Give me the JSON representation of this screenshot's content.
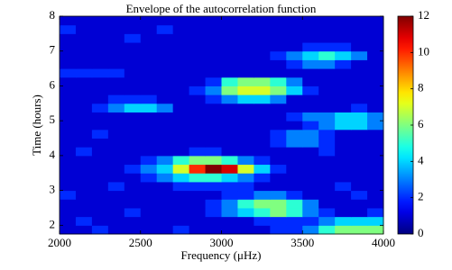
{
  "chart_data": {
    "type": "heatmap",
    "title": "Envelope of the autocorrelation function",
    "x_label": "Frequency (μHz)",
    "y_label": "Time (hours)",
    "x": [
      2050,
      2150,
      2250,
      2350,
      2450,
      2550,
      2650,
      2750,
      2850,
      2950,
      3050,
      3150,
      3250,
      3350,
      3450,
      3550,
      3650,
      3750,
      3850,
      3950
    ],
    "y": [
      1.875,
      2.125,
      2.375,
      2.625,
      2.875,
      3.125,
      3.375,
      3.625,
      3.875,
      4.125,
      4.375,
      4.625,
      4.875,
      5.125,
      5.375,
      5.625,
      5.875,
      6.125,
      6.375,
      6.625,
      6.875,
      7.125,
      7.375,
      7.625,
      7.875
    ],
    "z": [
      [
        1,
        1,
        2,
        1,
        1,
        1,
        1,
        2,
        1,
        1,
        1,
        1,
        1,
        2,
        2,
        3,
        5,
        6,
        6,
        6
      ],
      [
        1,
        2,
        1,
        1,
        1,
        1,
        1,
        1,
        1,
        1,
        1,
        1,
        2,
        2,
        2,
        2,
        3,
        4,
        4,
        4
      ],
      [
        1,
        1,
        1,
        1,
        2,
        1,
        1,
        1,
        1,
        2,
        3,
        4,
        5,
        6,
        5,
        3,
        2,
        1,
        1,
        2
      ],
      [
        1,
        1,
        1,
        1,
        1,
        1,
        1,
        1,
        1,
        2,
        3,
        5,
        6,
        6,
        5,
        3,
        1,
        1,
        1,
        1
      ],
      [
        2,
        1,
        1,
        1,
        1,
        1,
        1,
        1,
        1,
        1,
        2,
        2,
        3,
        3,
        2,
        1,
        1,
        1,
        2,
        1
      ],
      [
        1,
        1,
        1,
        2,
        1,
        1,
        1,
        2,
        2,
        2,
        2,
        2,
        1,
        1,
        1,
        1,
        1,
        2,
        1,
        1
      ],
      [
        1,
        1,
        1,
        1,
        1,
        2,
        3,
        4,
        5,
        5,
        4,
        3,
        2,
        1,
        1,
        1,
        1,
        1,
        1,
        1
      ],
      [
        1,
        1,
        1,
        1,
        2,
        3,
        4,
        7,
        10,
        12,
        11,
        7,
        4,
        2,
        1,
        1,
        1,
        1,
        1,
        1
      ],
      [
        1,
        1,
        1,
        1,
        1,
        2,
        3,
        5,
        6,
        6,
        5,
        3,
        2,
        1,
        1,
        1,
        1,
        1,
        1,
        1
      ],
      [
        1,
        2,
        1,
        1,
        1,
        1,
        1,
        1,
        2,
        2,
        1,
        1,
        1,
        1,
        1,
        1,
        2,
        1,
        1,
        1
      ],
      [
        1,
        1,
        1,
        1,
        1,
        1,
        1,
        1,
        1,
        1,
        1,
        1,
        1,
        2,
        3,
        3,
        2,
        1,
        1,
        1
      ],
      [
        1,
        1,
        2,
        1,
        1,
        1,
        1,
        1,
        1,
        1,
        1,
        1,
        1,
        2,
        3,
        3,
        2,
        1,
        1,
        1
      ],
      [
        1,
        1,
        1,
        1,
        1,
        1,
        1,
        1,
        1,
        1,
        1,
        1,
        1,
        1,
        1,
        2,
        3,
        4,
        4,
        3
      ],
      [
        1,
        1,
        1,
        1,
        1,
        1,
        1,
        1,
        1,
        1,
        1,
        1,
        1,
        1,
        2,
        3,
        3,
        4,
        4,
        3
      ],
      [
        1,
        1,
        2,
        3,
        4,
        4,
        3,
        1,
        1,
        1,
        1,
        1,
        1,
        1,
        1,
        1,
        1,
        1,
        2,
        1
      ],
      [
        1,
        1,
        1,
        2,
        2,
        2,
        1,
        1,
        1,
        2,
        3,
        4,
        4,
        3,
        1,
        1,
        1,
        1,
        1,
        1
      ],
      [
        1,
        1,
        1,
        1,
        1,
        1,
        1,
        1,
        2,
        3,
        6,
        7,
        7,
        6,
        4,
        2,
        1,
        1,
        1,
        1
      ],
      [
        1,
        1,
        1,
        1,
        1,
        1,
        1,
        1,
        1,
        2,
        5,
        6,
        6,
        5,
        3,
        1,
        1,
        1,
        1,
        1
      ],
      [
        2,
        2,
        2,
        2,
        1,
        1,
        1,
        1,
        1,
        1,
        1,
        1,
        1,
        1,
        1,
        1,
        1,
        1,
        1,
        1
      ],
      [
        1,
        1,
        1,
        1,
        1,
        1,
        1,
        1,
        1,
        1,
        1,
        1,
        1,
        1,
        2,
        3,
        3,
        2,
        1,
        1
      ],
      [
        1,
        1,
        1,
        1,
        1,
        1,
        1,
        1,
        1,
        1,
        1,
        1,
        1,
        2,
        3,
        4,
        5,
        4,
        3,
        1
      ],
      [
        1,
        1,
        1,
        1,
        1,
        1,
        1,
        1,
        1,
        1,
        1,
        1,
        1,
        1,
        1,
        2,
        2,
        2,
        1,
        1
      ],
      [
        1,
        1,
        1,
        1,
        2,
        1,
        1,
        1,
        1,
        1,
        1,
        1,
        1,
        1,
        1,
        1,
        1,
        1,
        1,
        1
      ],
      [
        2,
        1,
        1,
        1,
        1,
        1,
        2,
        1,
        1,
        1,
        1,
        1,
        1,
        1,
        1,
        1,
        1,
        1,
        1,
        1
      ],
      [
        1,
        1,
        1,
        1,
        1,
        1,
        1,
        1,
        1,
        1,
        1,
        1,
        1,
        1,
        1,
        1,
        1,
        1,
        1,
        1
      ]
    ],
    "xlim": [
      2000,
      4000
    ],
    "ylim": [
      1.75,
      8
    ],
    "xticks": [
      2000,
      2500,
      3000,
      3500,
      4000
    ],
    "yticks": [
      2,
      3,
      4,
      5,
      6,
      7,
      8
    ],
    "colormap": "jet",
    "zlim": [
      0,
      12
    ],
    "colorbar_ticks": [
      0,
      2,
      4,
      6,
      8,
      10,
      12
    ]
  }
}
